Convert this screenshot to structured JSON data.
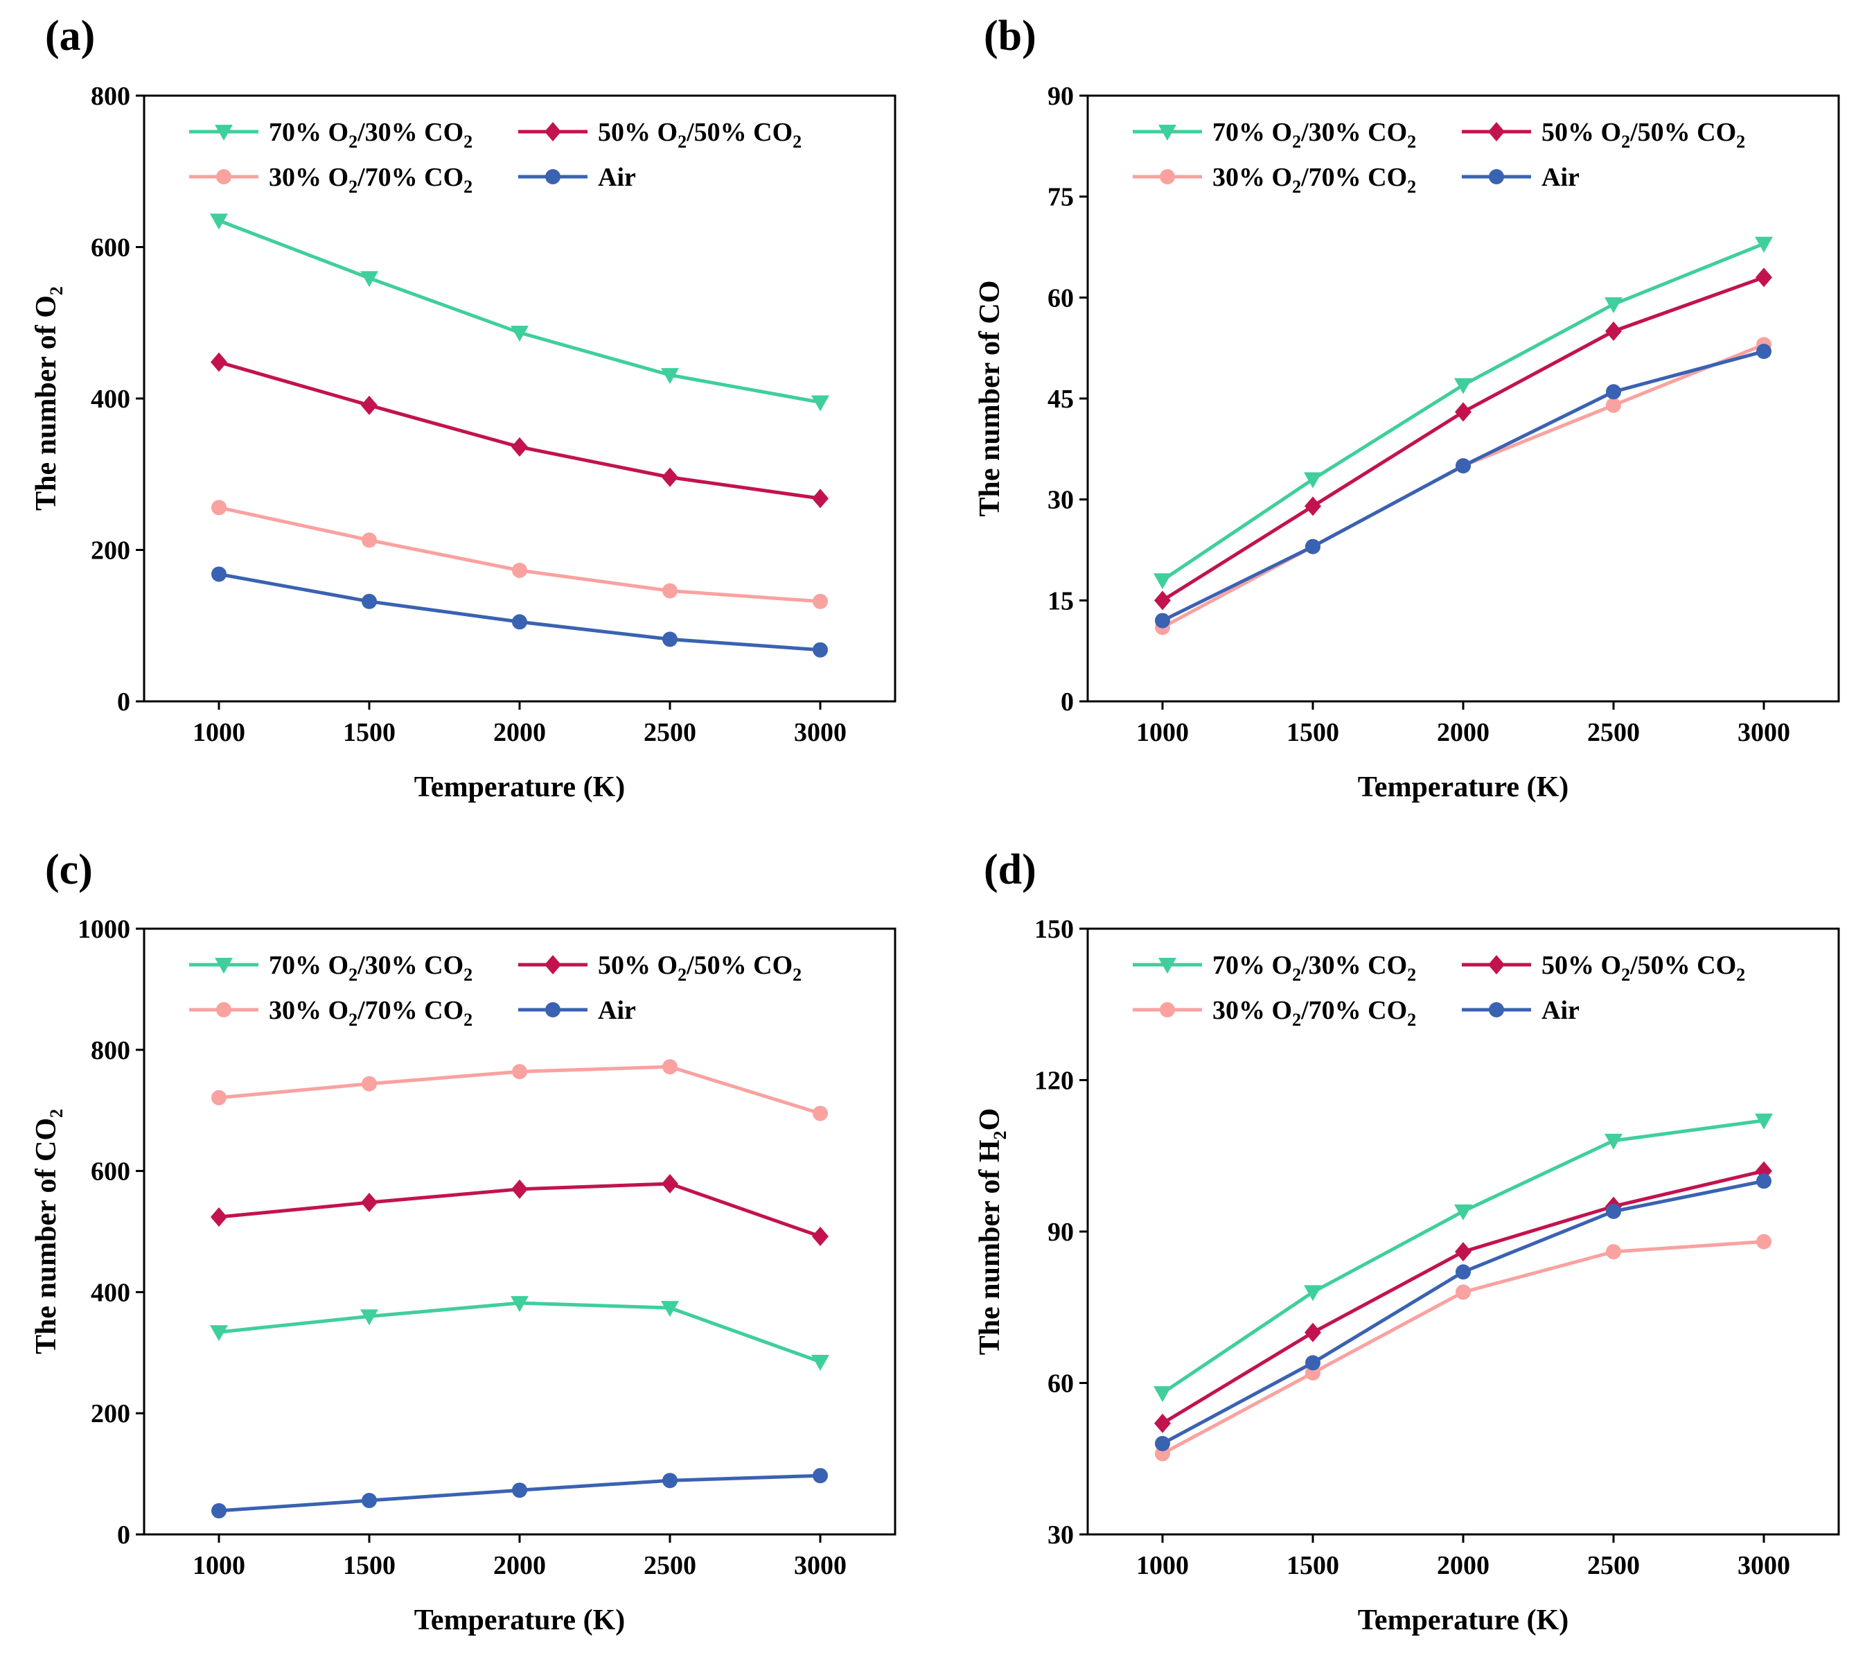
{
  "colors": {
    "o2_70": "#3fcf9c",
    "o2_50": "#c2134f",
    "o2_30": "#f9a2a0",
    "air": "#3a62b2",
    "axis": "#000000"
  },
  "legend_entries": [
    {
      "key": "o2_70",
      "marker": "triangle-down",
      "prefix": "70% O",
      "mid": "/30% CO",
      "sub": "2"
    },
    {
      "key": "o2_50",
      "marker": "diamond",
      "prefix": "50% O",
      "mid": "/50% CO",
      "sub": "2"
    },
    {
      "key": "o2_30",
      "marker": "circle",
      "prefix": "30% O",
      "mid": "/70% CO",
      "sub": "2"
    },
    {
      "key": "air",
      "marker": "circle",
      "prefix": "Air",
      "mid": "",
      "sub": ""
    }
  ],
  "chart_data": [
    {
      "type": "line",
      "panel_label": "(a)",
      "xlabel": "Temperature (K)",
      "ylabel": "The number of O",
      "ylabel_sub": "2",
      "ylabel_suffix": "",
      "x": [
        1000,
        1500,
        2000,
        2500,
        3000
      ],
      "x_ticks": [
        "1000",
        "1500",
        "2000",
        "2500",
        "3000"
      ],
      "ylim": [
        0,
        800
      ],
      "y_ticks": [
        0,
        200,
        400,
        600,
        800
      ],
      "legend_position": "top-left",
      "series": [
        {
          "name": "70% O2/30% CO2",
          "key": "o2_70",
          "values": [
            635,
            559,
            487,
            431,
            395
          ]
        },
        {
          "name": "50% O2/50% CO2",
          "key": "o2_50",
          "values": [
            448,
            391,
            336,
            296,
            268
          ]
        },
        {
          "name": "30% O2/70% CO2",
          "key": "o2_30",
          "values": [
            256,
            213,
            173,
            146,
            132
          ]
        },
        {
          "name": "Air",
          "key": "air",
          "values": [
            168,
            132,
            105,
            82,
            68
          ]
        }
      ]
    },
    {
      "type": "line",
      "panel_label": "(b)",
      "xlabel": "Temperature (K)",
      "ylabel": "The number of CO",
      "ylabel_sub": "",
      "ylabel_suffix": "",
      "x": [
        1000,
        1500,
        2000,
        2500,
        3000
      ],
      "x_ticks": [
        "1000",
        "1500",
        "2000",
        "2500",
        "3000"
      ],
      "ylim": [
        0,
        90
      ],
      "y_ticks": [
        0,
        15,
        30,
        45,
        60,
        75,
        90
      ],
      "legend_position": "top-left",
      "series": [
        {
          "name": "70% O2/30% CO2",
          "key": "o2_70",
          "values": [
            18,
            33,
            47,
            59,
            68
          ]
        },
        {
          "name": "50% O2/50% CO2",
          "key": "o2_50",
          "values": [
            15,
            29,
            43,
            55,
            63
          ]
        },
        {
          "name": "30% O2/70% CO2",
          "key": "o2_30",
          "values": [
            11,
            23,
            35,
            44,
            53
          ]
        },
        {
          "name": "Air",
          "key": "air",
          "values": [
            12,
            23,
            35,
            46,
            52
          ]
        }
      ]
    },
    {
      "type": "line",
      "panel_label": "(c)",
      "xlabel": "Temperature (K)",
      "ylabel": "The number of CO",
      "ylabel_sub": "2",
      "ylabel_suffix": "",
      "x": [
        1000,
        1500,
        2000,
        2500,
        3000
      ],
      "x_ticks": [
        "1000",
        "1500",
        "2000",
        "2500",
        "3000"
      ],
      "ylim": [
        0,
        1000
      ],
      "y_ticks": [
        0,
        200,
        400,
        600,
        800,
        1000
      ],
      "legend_position": "top-left",
      "series": [
        {
          "name": "70% O2/30% CO2",
          "key": "o2_70",
          "values": [
            334,
            360,
            382,
            374,
            285
          ]
        },
        {
          "name": "50% O2/50% CO2",
          "key": "o2_50",
          "values": [
            524,
            548,
            570,
            579,
            492
          ]
        },
        {
          "name": "30% O2/70% CO2",
          "key": "o2_30",
          "values": [
            721,
            744,
            764,
            772,
            695
          ]
        },
        {
          "name": "Air",
          "key": "air",
          "values": [
            39,
            56,
            73,
            89,
            97
          ]
        }
      ]
    },
    {
      "type": "line",
      "panel_label": "(d)",
      "xlabel": "Temperature (K)",
      "ylabel": "The number of H",
      "ylabel_sub": "2",
      "ylabel_suffix": "O",
      "x": [
        1000,
        1500,
        2000,
        2500,
        3000
      ],
      "x_ticks": [
        "1000",
        "1500",
        "2000",
        "2500",
        "3000"
      ],
      "ylim": [
        30,
        150
      ],
      "y_ticks": [
        30,
        60,
        90,
        120,
        150
      ],
      "legend_position": "top-left",
      "series": [
        {
          "name": "70% O2/30% CO2",
          "key": "o2_70",
          "values": [
            58,
            78,
            94,
            108,
            112
          ]
        },
        {
          "name": "50% O2/50% CO2",
          "key": "o2_50",
          "values": [
            52,
            70,
            86,
            95,
            102
          ]
        },
        {
          "name": "30% O2/70% CO2",
          "key": "o2_30",
          "values": [
            46,
            62,
            78,
            86,
            88
          ]
        },
        {
          "name": "Air",
          "key": "air",
          "values": [
            48,
            64,
            82,
            94,
            100
          ]
        }
      ]
    }
  ]
}
